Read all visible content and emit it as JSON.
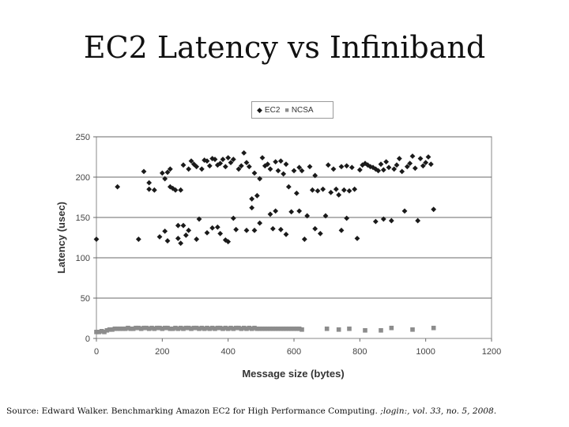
{
  "slide": {
    "title": "EC2 Latency vs Infiniband",
    "source_prefix": "Source: Edward Walker. Benchmarking Amazon EC2 for High Performance Computing. ",
    "source_italic": ";login:, vol. 33, no. 5, 2008."
  },
  "legend": {
    "position": "top-center"
  },
  "chart_data": {
    "type": "scatter",
    "title": "EC2 Latency vs Infiniband",
    "xlabel": "Message size (bytes)",
    "ylabel": "Latency (usec)",
    "xlim": [
      0,
      1200
    ],
    "ylim": [
      0,
      250
    ],
    "xticks": [
      0,
      200,
      400,
      600,
      800,
      1000,
      1200
    ],
    "yticks": [
      0,
      50,
      100,
      150,
      200,
      250
    ],
    "grid": {
      "horizontal": true,
      "vertical": false
    },
    "series": [
      {
        "name": "EC2",
        "color": "#1a1a1a",
        "marker": "diamond",
        "points": [
          [
            0,
            123
          ],
          [
            64,
            188
          ],
          [
            128,
            123
          ],
          [
            144,
            207
          ],
          [
            160,
            193
          ],
          [
            160,
            185
          ],
          [
            176,
            184
          ],
          [
            192,
            126
          ],
          [
            200,
            205
          ],
          [
            208,
            198
          ],
          [
            208,
            133
          ],
          [
            216,
            121
          ],
          [
            216,
            206
          ],
          [
            224,
            210
          ],
          [
            224,
            188
          ],
          [
            232,
            186
          ],
          [
            240,
            184
          ],
          [
            248,
            140
          ],
          [
            248,
            124
          ],
          [
            256,
            184
          ],
          [
            256,
            118
          ],
          [
            264,
            215
          ],
          [
            264,
            140
          ],
          [
            272,
            128
          ],
          [
            280,
            210
          ],
          [
            280,
            134
          ],
          [
            288,
            220
          ],
          [
            296,
            216
          ],
          [
            304,
            123
          ],
          [
            304,
            213
          ],
          [
            312,
            148
          ],
          [
            320,
            210
          ],
          [
            328,
            221
          ],
          [
            336,
            220
          ],
          [
            336,
            131
          ],
          [
            344,
            214
          ],
          [
            352,
            223
          ],
          [
            352,
            137
          ],
          [
            360,
            222
          ],
          [
            368,
            215
          ],
          [
            368,
            138
          ],
          [
            376,
            217
          ],
          [
            376,
            130
          ],
          [
            384,
            222
          ],
          [
            392,
            213
          ],
          [
            392,
            122
          ],
          [
            400,
            224
          ],
          [
            400,
            120
          ],
          [
            408,
            218
          ],
          [
            416,
            149
          ],
          [
            416,
            222
          ],
          [
            424,
            135
          ],
          [
            432,
            210
          ],
          [
            440,
            214
          ],
          [
            448,
            230
          ],
          [
            456,
            134
          ],
          [
            456,
            218
          ],
          [
            464,
            213
          ],
          [
            472,
            173
          ],
          [
            472,
            162
          ],
          [
            480,
            134
          ],
          [
            480,
            205
          ],
          [
            488,
            177
          ],
          [
            496,
            198
          ],
          [
            496,
            143
          ],
          [
            504,
            224
          ],
          [
            512,
            214
          ],
          [
            520,
            216
          ],
          [
            528,
            154
          ],
          [
            528,
            210
          ],
          [
            536,
            136
          ],
          [
            544,
            219
          ],
          [
            544,
            158
          ],
          [
            552,
            208
          ],
          [
            560,
            220
          ],
          [
            560,
            135
          ],
          [
            568,
            204
          ],
          [
            576,
            129
          ],
          [
            576,
            216
          ],
          [
            584,
            188
          ],
          [
            592,
            157
          ],
          [
            600,
            208
          ],
          [
            608,
            180
          ],
          [
            616,
            212
          ],
          [
            616,
            158
          ],
          [
            624,
            208
          ],
          [
            632,
            123
          ],
          [
            640,
            152
          ],
          [
            648,
            213
          ],
          [
            656,
            184
          ],
          [
            664,
            202
          ],
          [
            664,
            136
          ],
          [
            672,
            183
          ],
          [
            680,
            130
          ],
          [
            688,
            185
          ],
          [
            696,
            152
          ],
          [
            704,
            215
          ],
          [
            712,
            181
          ],
          [
            720,
            210
          ],
          [
            728,
            185
          ],
          [
            736,
            178
          ],
          [
            744,
            213
          ],
          [
            744,
            134
          ],
          [
            752,
            184
          ],
          [
            760,
            214
          ],
          [
            760,
            149
          ],
          [
            768,
            183
          ],
          [
            776,
            212
          ],
          [
            784,
            185
          ],
          [
            792,
            124
          ],
          [
            800,
            209
          ],
          [
            808,
            215
          ],
          [
            816,
            217
          ],
          [
            824,
            215
          ],
          [
            832,
            213
          ],
          [
            840,
            212
          ],
          [
            848,
            145
          ],
          [
            848,
            210
          ],
          [
            856,
            208
          ],
          [
            864,
            216
          ],
          [
            872,
            209
          ],
          [
            872,
            148
          ],
          [
            880,
            219
          ],
          [
            888,
            212
          ],
          [
            896,
            146
          ],
          [
            904,
            210
          ],
          [
            912,
            215
          ],
          [
            920,
            223
          ],
          [
            928,
            207
          ],
          [
            936,
            158
          ],
          [
            944,
            213
          ],
          [
            952,
            217
          ],
          [
            960,
            226
          ],
          [
            968,
            211
          ],
          [
            976,
            146
          ],
          [
            984,
            223
          ],
          [
            992,
            214
          ],
          [
            1000,
            218
          ],
          [
            1008,
            225
          ],
          [
            1016,
            216
          ],
          [
            1024,
            160
          ]
        ]
      },
      {
        "name": "NCSA",
        "color": "#8c8c8c",
        "marker": "square",
        "points": [
          [
            0,
            8
          ],
          [
            8,
            8
          ],
          [
            16,
            9
          ],
          [
            24,
            8
          ],
          [
            32,
            10
          ],
          [
            40,
            11
          ],
          [
            48,
            11
          ],
          [
            56,
            12
          ],
          [
            64,
            12
          ],
          [
            72,
            12
          ],
          [
            80,
            12
          ],
          [
            88,
            12
          ],
          [
            96,
            13
          ],
          [
            104,
            12
          ],
          [
            112,
            12
          ],
          [
            120,
            13
          ],
          [
            128,
            13
          ],
          [
            136,
            12
          ],
          [
            144,
            13
          ],
          [
            152,
            13
          ],
          [
            160,
            12
          ],
          [
            168,
            13
          ],
          [
            176,
            12
          ],
          [
            184,
            13
          ],
          [
            192,
            13
          ],
          [
            200,
            12
          ],
          [
            208,
            13
          ],
          [
            216,
            13
          ],
          [
            224,
            12
          ],
          [
            232,
            12
          ],
          [
            240,
            13
          ],
          [
            248,
            12
          ],
          [
            256,
            13
          ],
          [
            264,
            12
          ],
          [
            272,
            13
          ],
          [
            280,
            13
          ],
          [
            288,
            12
          ],
          [
            296,
            13
          ],
          [
            304,
            13
          ],
          [
            312,
            12
          ],
          [
            320,
            13
          ],
          [
            328,
            12
          ],
          [
            336,
            13
          ],
          [
            344,
            12
          ],
          [
            352,
            13
          ],
          [
            360,
            12
          ],
          [
            368,
            13
          ],
          [
            376,
            13
          ],
          [
            384,
            12
          ],
          [
            392,
            13
          ],
          [
            400,
            12
          ],
          [
            408,
            13
          ],
          [
            416,
            12
          ],
          [
            424,
            13
          ],
          [
            432,
            13
          ],
          [
            440,
            12
          ],
          [
            448,
            13
          ],
          [
            456,
            12
          ],
          [
            464,
            13
          ],
          [
            472,
            12
          ],
          [
            480,
            13
          ],
          [
            488,
            12
          ],
          [
            496,
            12
          ],
          [
            504,
            12
          ],
          [
            512,
            12
          ],
          [
            520,
            12
          ],
          [
            528,
            12
          ],
          [
            536,
            12
          ],
          [
            544,
            12
          ],
          [
            552,
            12
          ],
          [
            560,
            12
          ],
          [
            568,
            12
          ],
          [
            576,
            12
          ],
          [
            584,
            12
          ],
          [
            592,
            12
          ],
          [
            600,
            12
          ],
          [
            608,
            12
          ],
          [
            616,
            12
          ],
          [
            624,
            11
          ],
          [
            700,
            12
          ],
          [
            736,
            11
          ],
          [
            768,
            12
          ],
          [
            816,
            10
          ],
          [
            864,
            10
          ],
          [
            896,
            13
          ],
          [
            960,
            11
          ],
          [
            1024,
            13
          ]
        ]
      }
    ]
  }
}
